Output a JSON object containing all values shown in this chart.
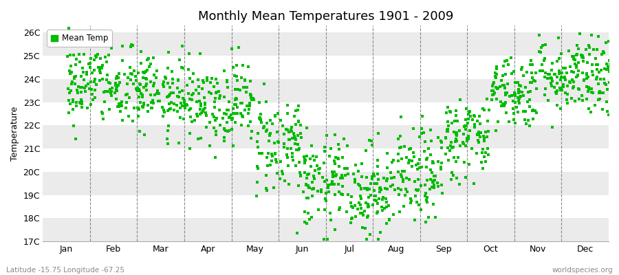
{
  "title": "Monthly Mean Temperatures 1901 - 2009",
  "ylabel": "Temperature",
  "xlabel_labels": [
    "Jan",
    "Feb",
    "Mar",
    "Apr",
    "May",
    "Jun",
    "Jul",
    "Aug",
    "Sep",
    "Oct",
    "Nov",
    "Dec"
  ],
  "ytick_labels": [
    "17C",
    "18C",
    "19C",
    "20C",
    "21C",
    "22C",
    "23C",
    "24C",
    "25C",
    "26C"
  ],
  "ytick_values": [
    17,
    18,
    19,
    20,
    21,
    22,
    23,
    24,
    25,
    26
  ],
  "ylim": [
    17,
    26.3
  ],
  "xlim": [
    0,
    12
  ],
  "legend_label": "Mean Temp",
  "dot_color": "#00bb00",
  "background_color": "#ffffff",
  "plot_bg_color": "#ffffff",
  "band_color_light": "#ffffff",
  "band_color_dark": "#ebebeb",
  "footer_left": "Latitude -15.75 Longitude -67.25",
  "footer_right": "worldspecies.org",
  "n_years": 109,
  "month_means": [
    23.8,
    23.5,
    23.2,
    23.0,
    21.2,
    19.5,
    19.2,
    19.8,
    21.5,
    23.5,
    24.2,
    24.0
  ],
  "month_stds": [
    0.9,
    0.9,
    0.8,
    0.9,
    1.1,
    1.0,
    1.0,
    1.0,
    0.9,
    0.8,
    0.8,
    0.9
  ],
  "seed": 42
}
